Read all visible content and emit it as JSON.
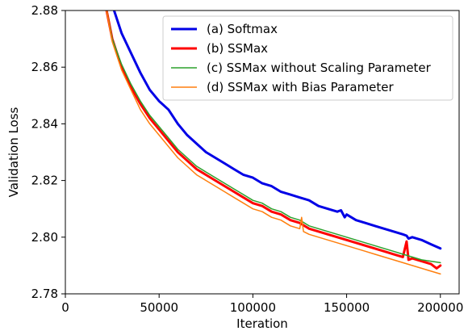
{
  "chart_data": {
    "type": "line",
    "title": "",
    "xlabel": "Iteration",
    "ylabel": "Validation Loss",
    "xlim": [
      0,
      210000
    ],
    "ylim": [
      2.78,
      2.88
    ],
    "xticks": [
      0,
      50000,
      100000,
      150000,
      200000
    ],
    "xtick_labels": [
      "0",
      "50000",
      "100000",
      "150000",
      "200000"
    ],
    "yticks": [
      2.78,
      2.8,
      2.82,
      2.84,
      2.86,
      2.88
    ],
    "ytick_labels": [
      "2.78",
      "2.80",
      "2.82",
      "2.84",
      "2.86",
      "2.88"
    ],
    "grid": false,
    "legend_position": "top-right",
    "series": [
      {
        "name": "(a) Softmax",
        "color": "#0000e6",
        "linewidth": "thick",
        "x": [
          26000,
          30000,
          35000,
          40000,
          45000,
          50000,
          55000,
          60000,
          65000,
          70000,
          75000,
          80000,
          85000,
          90000,
          95000,
          100000,
          105000,
          110000,
          115000,
          120000,
          125000,
          130000,
          135000,
          140000,
          145000,
          147000,
          149000,
          150000,
          155000,
          160000,
          165000,
          170000,
          175000,
          180000,
          182000,
          183000,
          185000,
          190000,
          195000,
          200000
        ],
        "y": [
          2.88,
          2.872,
          2.865,
          2.858,
          2.852,
          2.848,
          2.845,
          2.84,
          2.836,
          2.833,
          2.83,
          2.828,
          2.826,
          2.824,
          2.822,
          2.821,
          2.819,
          2.818,
          2.816,
          2.815,
          2.814,
          2.813,
          2.811,
          2.81,
          2.809,
          2.8095,
          2.807,
          2.808,
          2.806,
          2.805,
          2.804,
          2.803,
          2.802,
          2.801,
          2.8005,
          2.7995,
          2.8,
          2.799,
          2.7975,
          2.796
        ]
      },
      {
        "name": "(b) SSMax",
        "color": "#ff0000",
        "linewidth": "thick",
        "x": [
          22000,
          25000,
          30000,
          35000,
          40000,
          45000,
          50000,
          55000,
          60000,
          65000,
          70000,
          75000,
          80000,
          85000,
          90000,
          95000,
          100000,
          105000,
          110000,
          115000,
          120000,
          125000,
          130000,
          135000,
          140000,
          145000,
          150000,
          155000,
          160000,
          165000,
          170000,
          175000,
          180000,
          182000,
          183000,
          185000,
          190000,
          195000,
          198000,
          200000
        ],
        "y": [
          2.88,
          2.87,
          2.86,
          2.853,
          2.847,
          2.842,
          2.838,
          2.834,
          2.83,
          2.827,
          2.824,
          2.822,
          2.82,
          2.818,
          2.816,
          2.814,
          2.812,
          2.811,
          2.809,
          2.808,
          2.806,
          2.805,
          2.803,
          2.802,
          2.801,
          2.8,
          2.799,
          2.798,
          2.797,
          2.796,
          2.795,
          2.794,
          2.793,
          2.7985,
          2.792,
          2.7925,
          2.7915,
          2.7905,
          2.789,
          2.79
        ]
      },
      {
        "name": "(c) SSMax without Scaling Parameter",
        "color": "#2ca02c",
        "linewidth": "thin",
        "x": [
          22000,
          25000,
          30000,
          35000,
          40000,
          45000,
          50000,
          55000,
          60000,
          65000,
          70000,
          75000,
          80000,
          85000,
          90000,
          95000,
          100000,
          105000,
          110000,
          115000,
          120000,
          125000,
          130000,
          135000,
          140000,
          145000,
          150000,
          155000,
          160000,
          165000,
          170000,
          175000,
          180000,
          185000,
          190000,
          195000,
          200000
        ],
        "y": [
          2.88,
          2.87,
          2.861,
          2.854,
          2.848,
          2.843,
          2.839,
          2.835,
          2.831,
          2.828,
          2.825,
          2.823,
          2.821,
          2.819,
          2.817,
          2.815,
          2.813,
          2.812,
          2.81,
          2.809,
          2.807,
          2.806,
          2.804,
          2.803,
          2.802,
          2.801,
          2.8,
          2.799,
          2.798,
          2.797,
          2.796,
          2.795,
          2.794,
          2.793,
          2.792,
          2.7915,
          2.791
        ]
      },
      {
        "name": "(d) SSMax with Bias Parameter",
        "color": "#ff7f0e",
        "linewidth": "thin",
        "x": [
          22000,
          25000,
          30000,
          35000,
          40000,
          45000,
          50000,
          55000,
          60000,
          65000,
          70000,
          75000,
          80000,
          85000,
          90000,
          95000,
          100000,
          105000,
          110000,
          115000,
          120000,
          125000,
          126000,
          127000,
          130000,
          135000,
          140000,
          145000,
          150000,
          155000,
          160000,
          165000,
          170000,
          175000,
          180000,
          185000,
          190000,
          195000,
          200000
        ],
        "y": [
          2.88,
          2.869,
          2.859,
          2.852,
          2.845,
          2.84,
          2.836,
          2.832,
          2.828,
          2.825,
          2.822,
          2.82,
          2.818,
          2.816,
          2.814,
          2.812,
          2.81,
          2.809,
          2.807,
          2.806,
          2.804,
          2.803,
          2.807,
          2.802,
          2.801,
          2.8,
          2.799,
          2.798,
          2.797,
          2.796,
          2.795,
          2.794,
          2.793,
          2.792,
          2.791,
          2.79,
          2.789,
          2.788,
          2.787
        ]
      }
    ]
  }
}
